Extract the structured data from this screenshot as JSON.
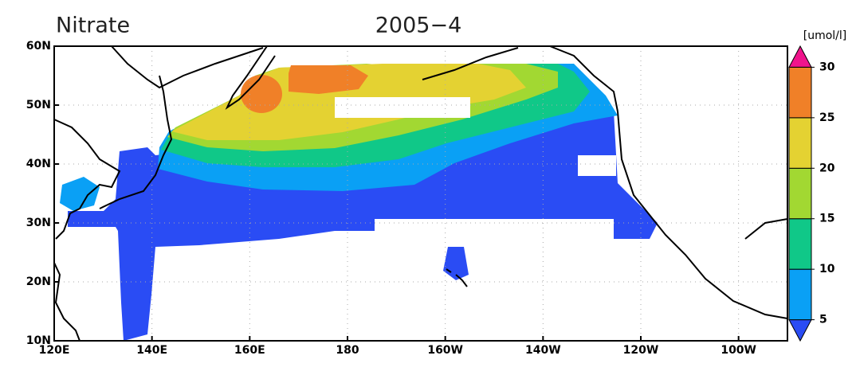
{
  "title": "Nitrate",
  "subtitle": "2005−4",
  "unit": "[umol/l]",
  "lat_labels": [
    "60N",
    "50N",
    "40N",
    "30N",
    "20N",
    "10N"
  ],
  "lon_labels": [
    "120E",
    "140E",
    "160E",
    "180",
    "160W",
    "140W",
    "120W",
    "100W"
  ],
  "colorbar": {
    "levels": [
      5,
      10,
      15,
      20,
      25,
      30
    ],
    "colors": [
      "#2a4cf4",
      "#0aa0f5",
      "#10c888",
      "#a2d832",
      "#e4d232",
      "#f08028",
      "#f0148c"
    ]
  }
}
